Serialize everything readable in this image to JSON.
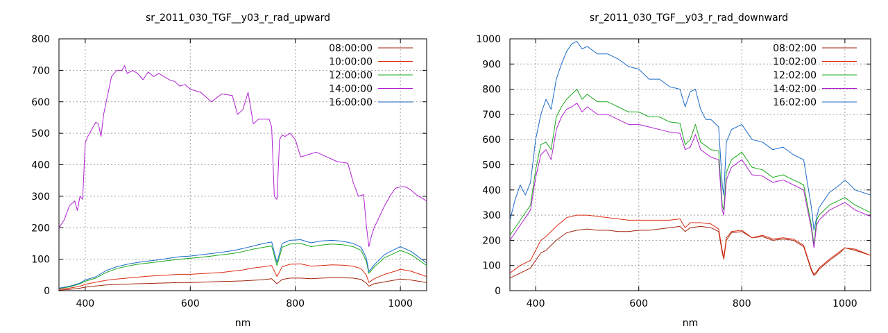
{
  "chart_data": [
    {
      "type": "line",
      "title": "sr_2011_030_TGF__y03_r_rad_upward",
      "xlabel": "nm",
      "ylabel": "",
      "xlim": [
        350,
        1050
      ],
      "ylim": [
        0,
        800
      ],
      "xticks": [
        400,
        600,
        800,
        1000
      ],
      "yticks": [
        0,
        100,
        200,
        300,
        400,
        500,
        600,
        700,
        800
      ],
      "grid": true,
      "legend_position": "top-right",
      "series": [
        {
          "name": "08:00:00",
          "color": "#a0240a",
          "x": [
            350,
            370,
            390,
            400,
            420,
            440,
            460,
            480,
            500,
            520,
            540,
            560,
            580,
            600,
            620,
            640,
            660,
            680,
            700,
            720,
            740,
            755,
            765,
            775,
            790,
            810,
            830,
            850,
            870,
            890,
            910,
            925,
            935,
            940,
            950,
            970,
            990,
            1000,
            1020,
            1050
          ],
          "y": [
            2,
            4,
            8,
            11,
            15,
            18,
            20,
            21,
            22,
            23,
            24,
            25,
            26,
            26,
            27,
            28,
            29,
            30,
            31,
            33,
            35,
            38,
            22,
            36,
            40,
            40,
            38,
            40,
            41,
            41,
            40,
            36,
            24,
            14,
            22,
            28,
            34,
            37,
            34,
            26
          ]
        },
        {
          "name": "10:00:00",
          "color": "#dc2a10",
          "x": [
            350,
            370,
            390,
            400,
            420,
            440,
            460,
            480,
            500,
            520,
            540,
            560,
            580,
            600,
            620,
            640,
            660,
            680,
            700,
            720,
            740,
            755,
            765,
            775,
            790,
            810,
            830,
            850,
            870,
            890,
            910,
            925,
            935,
            940,
            950,
            970,
            990,
            1000,
            1020,
            1050
          ],
          "y": [
            5,
            8,
            14,
            20,
            27,
            33,
            37,
            40,
            43,
            46,
            48,
            50,
            52,
            52,
            54,
            56,
            58,
            62,
            66,
            72,
            76,
            80,
            45,
            76,
            84,
            85,
            78,
            80,
            82,
            81,
            78,
            70,
            50,
            26,
            38,
            52,
            62,
            68,
            62,
            45
          ]
        },
        {
          "name": "12:00:00",
          "color": "#1aa81a",
          "x": [
            350,
            370,
            390,
            400,
            420,
            440,
            460,
            480,
            500,
            520,
            540,
            560,
            580,
            600,
            620,
            640,
            660,
            680,
            700,
            720,
            740,
            755,
            765,
            775,
            790,
            810,
            830,
            850,
            870,
            890,
            910,
            925,
            935,
            940,
            950,
            970,
            990,
            1000,
            1020,
            1050
          ],
          "y": [
            7,
            12,
            22,
            30,
            40,
            58,
            70,
            78,
            84,
            88,
            92,
            96,
            100,
            103,
            106,
            110,
            114,
            118,
            124,
            132,
            138,
            142,
            80,
            138,
            148,
            150,
            140,
            145,
            148,
            146,
            140,
            128,
            95,
            55,
            75,
            105,
            120,
            128,
            115,
            80
          ]
        },
        {
          "name": "14:00:00",
          "color": "#b020d0",
          "x": [
            350,
            360,
            370,
            380,
            385,
            390,
            395,
            400,
            405,
            410,
            420,
            425,
            430,
            435,
            440,
            450,
            460,
            470,
            475,
            480,
            490,
            500,
            510,
            520,
            530,
            540,
            550,
            560,
            570,
            580,
            590,
            600,
            620,
            640,
            660,
            680,
            690,
            700,
            710,
            720,
            730,
            740,
            750,
            755,
            760,
            765,
            770,
            775,
            780,
            790,
            800,
            810,
            820,
            840,
            860,
            880,
            900,
            910,
            920,
            930,
            935,
            940,
            945,
            950,
            960,
            970,
            980,
            990,
            1000,
            1010,
            1020,
            1030,
            1040,
            1050
          ],
          "y": [
            200,
            225,
            270,
            285,
            255,
            300,
            290,
            470,
            490,
            505,
            535,
            530,
            490,
            560,
            600,
            680,
            700,
            700,
            715,
            690,
            700,
            690,
            670,
            695,
            680,
            690,
            680,
            670,
            665,
            650,
            655,
            640,
            630,
            600,
            625,
            620,
            560,
            575,
            630,
            530,
            545,
            545,
            545,
            520,
            300,
            290,
            480,
            495,
            490,
            500,
            480,
            425,
            430,
            440,
            425,
            410,
            405,
            345,
            300,
            305,
            210,
            140,
            175,
            200,
            235,
            270,
            300,
            325,
            330,
            330,
            320,
            305,
            295,
            285
          ]
        },
        {
          "name": "16:00:00",
          "color": "#1a6ac8",
          "x": [
            350,
            370,
            390,
            400,
            420,
            440,
            460,
            480,
            500,
            520,
            540,
            560,
            580,
            600,
            620,
            640,
            660,
            680,
            700,
            720,
            740,
            755,
            765,
            775,
            790,
            810,
            830,
            850,
            870,
            890,
            910,
            925,
            935,
            940,
            950,
            970,
            990,
            1000,
            1020,
            1050
          ],
          "y": [
            8,
            14,
            24,
            34,
            44,
            64,
            76,
            84,
            90,
            94,
            98,
            103,
            108,
            110,
            114,
            118,
            122,
            127,
            134,
            142,
            150,
            155,
            90,
            150,
            160,
            162,
            152,
            158,
            160,
            157,
            150,
            138,
            105,
            60,
            82,
            115,
            132,
            140,
            125,
            88
          ]
        }
      ]
    },
    {
      "type": "line",
      "title": "sr_2011_030_TGF__y03_r_rad_downward",
      "xlabel": "nm",
      "ylabel": "",
      "xlim": [
        350,
        1050
      ],
      "ylim": [
        0,
        1000
      ],
      "xticks": [
        400,
        600,
        800,
        1000
      ],
      "yticks": [
        0,
        100,
        200,
        300,
        400,
        500,
        600,
        700,
        800,
        900,
        1000
      ],
      "grid": true,
      "legend_position": "top-right",
      "series": [
        {
          "name": "08:02:00",
          "color": "#a0240a",
          "x": [
            350,
            370,
            390,
            400,
            410,
            420,
            440,
            460,
            480,
            500,
            520,
            540,
            560,
            580,
            600,
            620,
            640,
            660,
            680,
            690,
            700,
            720,
            740,
            755,
            762,
            765,
            770,
            780,
            800,
            820,
            840,
            860,
            880,
            900,
            920,
            935,
            940,
            945,
            950,
            970,
            990,
            1000,
            1020,
            1050
          ],
          "y": [
            50,
            70,
            90,
            120,
            150,
            160,
            200,
            230,
            240,
            245,
            240,
            240,
            235,
            235,
            240,
            240,
            245,
            250,
            255,
            235,
            250,
            255,
            250,
            235,
            150,
            125,
            200,
            230,
            235,
            210,
            215,
            200,
            205,
            200,
            175,
            80,
            60,
            70,
            85,
            120,
            150,
            170,
            160,
            140
          ]
        },
        {
          "name": "10:02:00",
          "color": "#dc2a10",
          "x": [
            350,
            370,
            390,
            400,
            410,
            420,
            440,
            460,
            480,
            500,
            520,
            540,
            560,
            580,
            600,
            620,
            640,
            660,
            680,
            690,
            700,
            720,
            740,
            755,
            762,
            765,
            770,
            780,
            800,
            820,
            840,
            860,
            880,
            900,
            920,
            935,
            940,
            945,
            950,
            970,
            990,
            1000,
            1020,
            1050
          ],
          "y": [
            70,
            100,
            120,
            160,
            200,
            215,
            255,
            290,
            300,
            300,
            295,
            290,
            285,
            280,
            280,
            280,
            280,
            280,
            285,
            250,
            270,
            270,
            265,
            245,
            160,
            130,
            210,
            235,
            240,
            210,
            220,
            205,
            210,
            205,
            180,
            85,
            65,
            75,
            90,
            125,
            155,
            170,
            165,
            140
          ]
        },
        {
          "name": "12:02:00",
          "color": "#1aa81a",
          "x": [
            350,
            370,
            380,
            390,
            400,
            410,
            420,
            430,
            440,
            450,
            460,
            470,
            480,
            490,
            500,
            520,
            540,
            560,
            580,
            600,
            620,
            640,
            660,
            680,
            690,
            700,
            710,
            720,
            740,
            755,
            762,
            765,
            770,
            780,
            800,
            820,
            840,
            860,
            880,
            900,
            920,
            935,
            940,
            945,
            950,
            970,
            990,
            1000,
            1020,
            1050
          ],
          "y": [
            220,
            280,
            310,
            340,
            480,
            580,
            590,
            560,
            690,
            730,
            760,
            780,
            800,
            760,
            780,
            750,
            750,
            730,
            710,
            710,
            690,
            690,
            670,
            665,
            580,
            600,
            660,
            590,
            560,
            555,
            340,
            320,
            470,
            520,
            550,
            490,
            480,
            450,
            460,
            440,
            420,
            260,
            180,
            280,
            300,
            340,
            360,
            370,
            340,
            310
          ]
        },
        {
          "name": "14:02:00",
          "color": "#b020d0",
          "x": [
            350,
            370,
            380,
            390,
            400,
            410,
            420,
            430,
            440,
            450,
            460,
            470,
            480,
            490,
            500,
            520,
            540,
            560,
            580,
            600,
            620,
            640,
            660,
            680,
            690,
            700,
            710,
            720,
            740,
            755,
            762,
            765,
            770,
            780,
            800,
            820,
            840,
            860,
            880,
            900,
            920,
            935,
            940,
            945,
            950,
            970,
            990,
            1000,
            1020,
            1050
          ],
          "y": [
            200,
            260,
            290,
            320,
            450,
            540,
            560,
            520,
            640,
            690,
            720,
            730,
            745,
            710,
            730,
            700,
            700,
            680,
            660,
            660,
            650,
            640,
            630,
            625,
            560,
            570,
            620,
            560,
            530,
            520,
            320,
            300,
            440,
            490,
            520,
            460,
            455,
            430,
            440,
            420,
            400,
            245,
            170,
            260,
            280,
            320,
            340,
            350,
            320,
            295
          ]
        },
        {
          "name": "16:02:00",
          "color": "#1a6ac8",
          "x": [
            350,
            360,
            370,
            380,
            390,
            400,
            410,
            420,
            430,
            440,
            450,
            460,
            470,
            480,
            490,
            500,
            520,
            540,
            560,
            580,
            600,
            620,
            640,
            660,
            680,
            690,
            700,
            710,
            720,
            730,
            740,
            755,
            762,
            765,
            770,
            780,
            800,
            820,
            840,
            860,
            880,
            900,
            920,
            935,
            940,
            945,
            950,
            970,
            990,
            1000,
            1020,
            1050
          ],
          "y": [
            280,
            360,
            420,
            380,
            430,
            600,
            700,
            760,
            720,
            840,
            900,
            950,
            980,
            990,
            960,
            970,
            940,
            940,
            920,
            890,
            880,
            840,
            840,
            810,
            800,
            730,
            790,
            800,
            720,
            680,
            680,
            650,
            420,
            380,
            590,
            640,
            660,
            600,
            590,
            560,
            570,
            540,
            520,
            330,
            240,
            290,
            330,
            390,
            420,
            440,
            400,
            380
          ]
        }
      ]
    }
  ]
}
